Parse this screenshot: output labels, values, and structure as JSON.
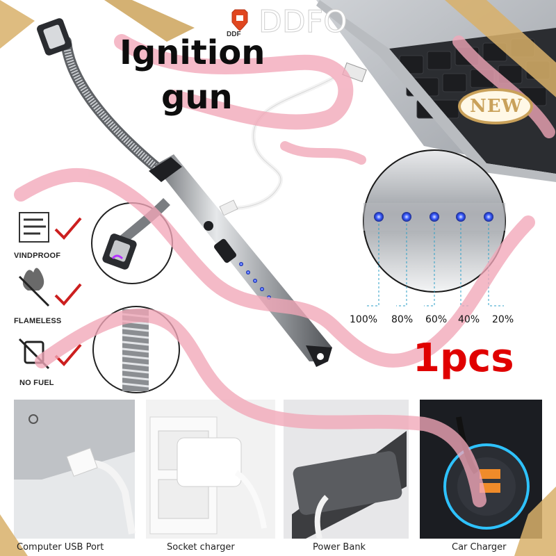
{
  "brand": {
    "logo_text": "DDF",
    "watermark_text": "DDFO"
  },
  "product": {
    "title_line1": "Ignition",
    "title_line2": "gun",
    "quantity": "1pcs",
    "new_badge": "NEW"
  },
  "features": [
    {
      "label": "VINDPROOF",
      "icon": "wind-icon"
    },
    {
      "label": "FLAMELESS",
      "icon": "flame-crossed-icon"
    },
    {
      "label": "NO FUEL",
      "icon": "fuel-crossed-icon"
    }
  ],
  "battery_levels": [
    "100%",
    "80%",
    "60%",
    "40%",
    "20%"
  ],
  "charging_options": [
    {
      "label": "Computer USB Port"
    },
    {
      "label": "Socket charger"
    },
    {
      "label": "Power Bank"
    },
    {
      "label": "Car Charger"
    }
  ],
  "colors": {
    "ribbon": "#f2a7b8",
    "led": "#3a5cff",
    "title": "#0d0d0d",
    "check": "#cc1f1f",
    "badge_gold": "#c9a15a"
  }
}
